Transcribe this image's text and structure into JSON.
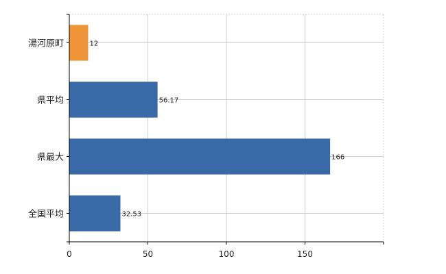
{
  "chart_data": {
    "type": "bar",
    "orientation": "horizontal",
    "categories": [
      "湯河原町",
      "県平均",
      "県最大",
      "全国平均"
    ],
    "values": [
      12,
      56.17,
      166,
      32.53
    ],
    "value_labels": [
      "12",
      "56.17",
      "166",
      "32.53"
    ],
    "bar_colors": [
      "#f0963a",
      "#3a69a7",
      "#3a69a7",
      "#3a69a7"
    ],
    "xlim": [
      0,
      200
    ],
    "xticks": [
      0,
      50,
      100,
      150
    ],
    "grid": true,
    "legend": "none",
    "title": "",
    "xlabel": "",
    "ylabel": ""
  }
}
